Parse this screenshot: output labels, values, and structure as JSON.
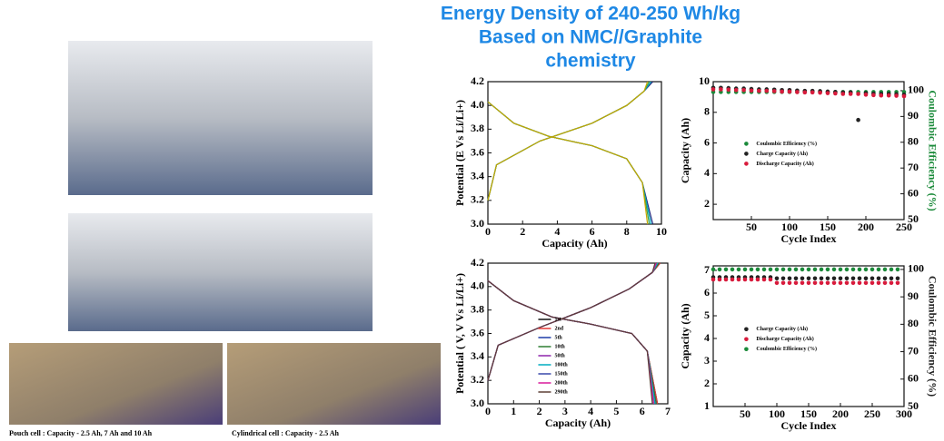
{
  "title": [
    "Energy Density of 240-250 Wh/kg",
    "Based on NMC//Graphite",
    "chemistry"
  ],
  "captions": [
    "Pouch cell : Capacity - 2.5 Ah, 7 Ah and 10 Ah",
    "Cylindrical cell : Capacity - 2.5 Ah"
  ],
  "chart_data": [
    {
      "type": "line",
      "xlabel": "Capacity (Ah)",
      "ylabel": "Potential (E Vs Li/Li+)",
      "xlim": [
        0,
        10
      ],
      "xticks": [
        0,
        2,
        4,
        6,
        8,
        10
      ],
      "ylim": [
        3,
        4.2
      ],
      "yticks": [
        {
          "value": 3,
          "label": "3.0"
        },
        3.2,
        3.4,
        3.6,
        3.8,
        {
          "value": 4,
          "label": "4.0"
        },
        4.2
      ],
      "series": [
        {
          "color": "#1a237e",
          "x": [
            0,
            0.5,
            3,
            6,
            8,
            9,
            9.5,
            null,
            0,
            1.5,
            3.5,
            6,
            8,
            8.9,
            9.5
          ],
          "values": [
            3.2,
            3.5,
            3.7,
            3.85,
            4,
            4.12,
            4.2,
            null,
            4.03,
            3.85,
            3.74,
            3.66,
            3.55,
            3.35,
            3
          ]
        },
        {
          "color": "#00acc1",
          "x": [
            0,
            0.5,
            3,
            6,
            8,
            9,
            9.4,
            null,
            0,
            1.5,
            3.5,
            6,
            8,
            8.9,
            9.4
          ],
          "values": [
            3.2,
            3.5,
            3.7,
            3.85,
            4,
            4.12,
            4.2,
            null,
            4.03,
            3.85,
            3.74,
            3.66,
            3.55,
            3.35,
            3
          ]
        },
        {
          "color": "#43a047",
          "x": [
            0,
            0.5,
            3,
            6,
            8,
            9,
            9.3,
            null,
            0,
            1.5,
            3.5,
            6,
            8,
            8.9,
            9.3
          ],
          "values": [
            3.2,
            3.5,
            3.7,
            3.85,
            4,
            4.12,
            4.2,
            null,
            4.03,
            3.85,
            3.74,
            3.66,
            3.55,
            3.35,
            3
          ]
        },
        {
          "color": "#c6a700",
          "x": [
            0,
            0.5,
            3,
            6,
            8,
            9,
            9.2,
            null,
            0,
            1.5,
            3.5,
            6,
            8,
            8.9,
            9.2
          ],
          "values": [
            3.2,
            3.5,
            3.7,
            3.85,
            4,
            4.12,
            4.2,
            null,
            4.03,
            3.85,
            3.74,
            3.66,
            3.55,
            3.35,
            3
          ]
        }
      ]
    },
    {
      "type": "scatter",
      "xlabel": "Cycle Index",
      "ylabel": "Capacity (Ah)",
      "y2label": "Coulombic Efficiency (%)",
      "y2color": "#1b8a3a",
      "legend": "center-left",
      "xlim": [
        0,
        250
      ],
      "xticks": [
        50,
        100,
        150,
        200,
        250
      ],
      "ylim": [
        1,
        10
      ],
      "yticks": [
        2,
        4,
        6,
        8,
        10
      ],
      "y2lim": [
        50,
        103.5
      ],
      "y2ticks": [
        50,
        60,
        70,
        80,
        90,
        100
      ],
      "x": [
        0,
        10,
        20,
        30,
        40,
        50,
        60,
        70,
        80,
        90,
        100,
        110,
        120,
        130,
        140,
        150,
        160,
        170,
        180,
        190,
        200,
        210,
        220,
        230,
        240,
        250
      ],
      "series": [
        {
          "name": "Coulombic Efficiency (%)",
          "color": "#1b8a3a",
          "axis": "y2",
          "values": [
            99.5,
            99.5,
            99.5,
            99.5,
            99.5,
            99.5,
            99.5,
            99.5,
            99.5,
            99.5,
            99.5,
            99.5,
            99.5,
            99.5,
            99.5,
            99.5,
            99.5,
            99.5,
            99.5,
            99.5,
            99.5,
            99.5,
            99.5,
            99.5,
            99.5,
            99.5
          ]
        },
        {
          "name": "Charge Capacity (Ah)",
          "color": "#222222",
          "values": [
            9.6,
            9.6,
            9.58,
            9.55,
            9.55,
            9.52,
            9.5,
            9.5,
            9.48,
            9.45,
            9.45,
            9.42,
            9.4,
            9.4,
            9.38,
            9.35,
            9.33,
            9.3,
            9.3,
            7.5,
            9.25,
            9.22,
            9.2,
            9.2,
            9.18,
            9.15
          ]
        },
        {
          "name": "Discharge Capacity (Ah)",
          "color": "#d81b3c",
          "values": [
            9.5,
            9.5,
            9.48,
            9.45,
            9.45,
            9.42,
            9.4,
            9.4,
            9.38,
            9.35,
            9.35,
            9.32,
            9.3,
            9.3,
            9.28,
            9.25,
            9.23,
            9.2,
            9.2,
            9.2,
            9.15,
            9.12,
            9.1,
            9.1,
            9.08,
            9.05
          ]
        }
      ]
    },
    {
      "type": "line",
      "xlabel": "Capacity (Ah)",
      "ylabel": "Potential ( V, V Vs Li/Li+)",
      "legend": "lower-left",
      "xlim": [
        0,
        7
      ],
      "xticks": [
        0,
        1,
        2,
        3,
        4,
        5,
        6,
        7
      ],
      "ylim": [
        3,
        4.2
      ],
      "yticks": [
        {
          "value": 3,
          "label": "3.0"
        },
        3.2,
        3.4,
        3.6,
        3.8,
        {
          "value": 4,
          "label": "4.0"
        },
        4.2
      ],
      "series": [
        {
          "name": "1st",
          "color": "#111111",
          "x": [
            0,
            0.4,
            2,
            4,
            5.5,
            6.4,
            6.7,
            null,
            0,
            1,
            2.5,
            4,
            5.6,
            6.2,
            6.6
          ],
          "values": [
            3.2,
            3.5,
            3.65,
            3.82,
            3.98,
            4.12,
            4.2,
            null,
            4.05,
            3.88,
            3.74,
            3.68,
            3.6,
            3.45,
            3
          ]
        },
        {
          "name": "2nd",
          "color": "#e53935",
          "x": [
            0,
            0.4,
            2,
            4,
            5.5,
            6.4,
            6.7,
            null,
            0,
            1,
            2.5,
            4,
            5.6,
            6.2,
            6.6
          ],
          "values": [
            3.2,
            3.5,
            3.65,
            3.82,
            3.98,
            4.12,
            4.2,
            null,
            4.05,
            3.88,
            3.74,
            3.68,
            3.6,
            3.45,
            3
          ]
        },
        {
          "name": "5th",
          "color": "#1e3ca8",
          "x": [
            0,
            0.4,
            2,
            4,
            5.5,
            6.4,
            6.65,
            null,
            0,
            1,
            2.5,
            4,
            5.6,
            6.2,
            6.55
          ],
          "values": [
            3.2,
            3.5,
            3.65,
            3.82,
            3.98,
            4.12,
            4.2,
            null,
            4.05,
            3.88,
            3.74,
            3.68,
            3.6,
            3.45,
            3
          ]
        },
        {
          "name": "10th",
          "color": "#2e7d32",
          "x": [
            0,
            0.4,
            2,
            4,
            5.5,
            6.4,
            6.65,
            null,
            0,
            1,
            2.5,
            4,
            5.6,
            6.2,
            6.55
          ],
          "values": [
            3.2,
            3.5,
            3.65,
            3.82,
            3.98,
            4.12,
            4.2,
            null,
            4.05,
            3.88,
            3.74,
            3.68,
            3.6,
            3.45,
            3
          ]
        },
        {
          "name": "50th",
          "color": "#8e24aa",
          "x": [
            0,
            0.4,
            2,
            4,
            5.5,
            6.4,
            6.6,
            null,
            0,
            1,
            2.5,
            4,
            5.6,
            6.2,
            6.5
          ],
          "values": [
            3.2,
            3.5,
            3.65,
            3.82,
            3.98,
            4.12,
            4.2,
            null,
            4.05,
            3.88,
            3.74,
            3.68,
            3.6,
            3.45,
            3
          ]
        },
        {
          "name": "100th",
          "color": "#00acc1",
          "x": [
            0,
            0.4,
            2,
            4,
            5.5,
            6.4,
            6.6,
            null,
            0,
            1,
            2.5,
            4,
            5.6,
            6.2,
            6.5
          ],
          "values": [
            3.2,
            3.5,
            3.65,
            3.82,
            3.98,
            4.12,
            4.2,
            null,
            4.05,
            3.88,
            3.74,
            3.68,
            3.6,
            3.45,
            3
          ]
        },
        {
          "name": "150th",
          "color": "#3949ab",
          "x": [
            0,
            0.4,
            2,
            4,
            5.5,
            6.4,
            6.55,
            null,
            0,
            1,
            2.5,
            4,
            5.6,
            6.2,
            6.45
          ],
          "values": [
            3.2,
            3.5,
            3.65,
            3.82,
            3.98,
            4.12,
            4.2,
            null,
            4.05,
            3.88,
            3.74,
            3.68,
            3.6,
            3.45,
            3
          ]
        },
        {
          "name": "200th",
          "color": "#d81b9a",
          "x": [
            0,
            0.4,
            2,
            4,
            5.5,
            6.4,
            6.55,
            null,
            0,
            1,
            2.5,
            4,
            5.6,
            6.2,
            6.45
          ],
          "values": [
            3.2,
            3.5,
            3.65,
            3.82,
            3.98,
            4.12,
            4.2,
            null,
            4.05,
            3.88,
            3.74,
            3.68,
            3.6,
            3.45,
            3
          ]
        },
        {
          "name": "290th",
          "color": "#5d4037",
          "x": [
            0,
            0.4,
            2,
            4,
            5.5,
            6.4,
            6.5,
            null,
            0,
            1,
            2.5,
            4,
            5.6,
            6.2,
            6.4
          ],
          "values": [
            3.2,
            3.5,
            3.65,
            3.82,
            3.98,
            4.12,
            4.2,
            null,
            4.05,
            3.88,
            3.74,
            3.68,
            3.6,
            3.45,
            3
          ]
        }
      ]
    },
    {
      "type": "scatter",
      "xlabel": "Cycle Index",
      "ylabel": "Capacity (Ah)",
      "y2label": "Coulombic Efficiency (%)",
      "y2color": "#222222",
      "legend": "center-left",
      "xlim": [
        0,
        300
      ],
      "xticks": [
        50,
        100,
        150,
        200,
        250,
        300
      ],
      "ylim": [
        1,
        7.2
      ],
      "yticks": [
        1,
        2,
        3,
        4,
        5,
        6,
        7
      ],
      "y2lim": [
        50,
        101.3
      ],
      "y2ticks": [
        50,
        60,
        70,
        80,
        90,
        100
      ],
      "x": [
        0,
        10,
        20,
        30,
        40,
        50,
        60,
        70,
        80,
        90,
        100,
        110,
        120,
        130,
        140,
        150,
        160,
        170,
        180,
        190,
        200,
        210,
        220,
        230,
        240,
        250,
        260,
        270,
        280,
        290
      ],
      "series": [
        {
          "name": "Charge Capacity (Ah)",
          "color": "#222222",
          "values": [
            6.7,
            6.7,
            6.7,
            6.7,
            6.7,
            6.7,
            6.7,
            6.7,
            6.7,
            6.7,
            6.65,
            6.65,
            6.65,
            6.65,
            6.65,
            6.65,
            6.65,
            6.65,
            6.65,
            6.65,
            6.65,
            6.65,
            6.65,
            6.65,
            6.65,
            6.65,
            6.65,
            6.65,
            6.65,
            6.65
          ]
        },
        {
          "name": "Discharge Capacity (Ah)",
          "color": "#d81b3c",
          "values": [
            6.6,
            6.6,
            6.6,
            6.6,
            6.6,
            6.6,
            6.6,
            6.6,
            6.6,
            6.6,
            6.45,
            6.45,
            6.45,
            6.45,
            6.45,
            6.45,
            6.45,
            6.45,
            6.45,
            6.45,
            6.45,
            6.45,
            6.45,
            6.45,
            6.45,
            6.45,
            6.45,
            6.45,
            6.45,
            6.45
          ]
        },
        {
          "name": "Coulombic Efficiency (%)",
          "color": "#1b8a3a",
          "axis": "y2",
          "values": [
            100,
            100,
            100,
            100,
            100,
            100,
            100,
            100,
            100,
            100,
            100,
            100,
            100,
            100,
            100,
            100,
            100,
            100,
            100,
            100,
            100,
            100,
            100,
            100,
            100,
            100,
            100,
            100,
            100,
            100
          ]
        }
      ]
    }
  ]
}
